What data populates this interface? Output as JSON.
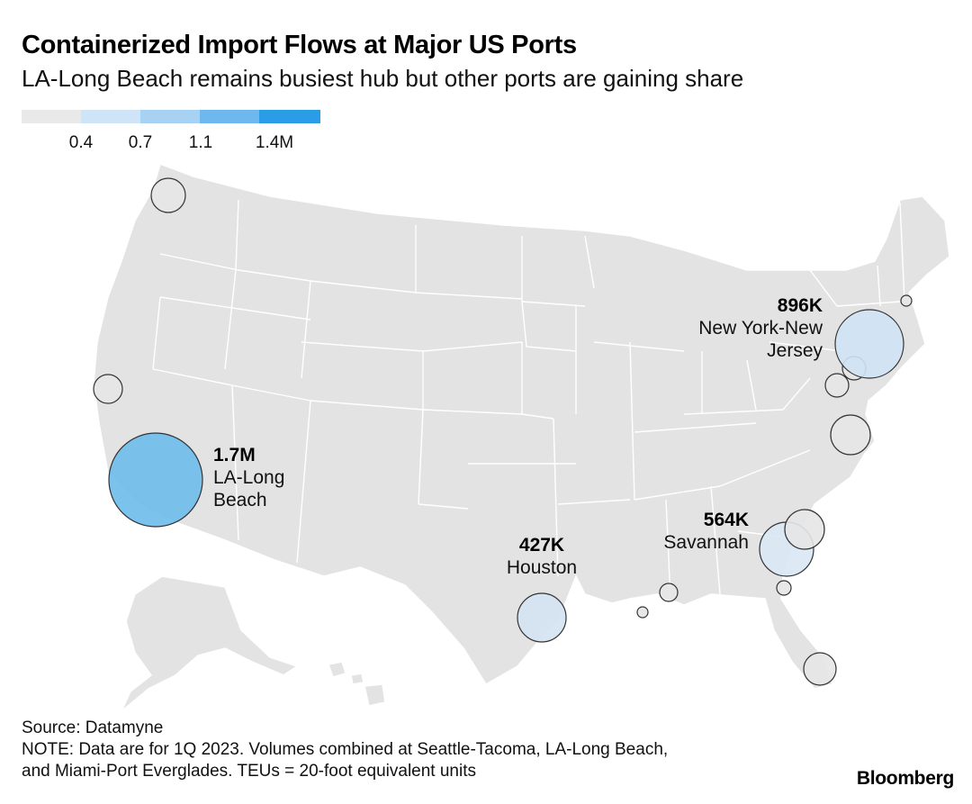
{
  "header": {
    "title": "Containerized Import Flows at Major US Ports",
    "subtitle": "LA-Long Beach remains busiest hub but other ports are gaining share"
  },
  "legend": {
    "ticks": [
      "0.4",
      "0.7",
      "1.1",
      "1.4M"
    ],
    "colors": [
      "#e9e9e9",
      "#cfe4f7",
      "#a8d2f4",
      "#6db8ee",
      "#2b9de6"
    ]
  },
  "map": {
    "land_color": "#e3e3e3",
    "border_color": "#ffffff",
    "bubble_stroke": "#333333"
  },
  "ports": [
    {
      "id": "seattle-tacoma",
      "color": "#e5e5e5"
    },
    {
      "id": "oakland",
      "color": "#e5e5e5"
    },
    {
      "id": "la-long-beach",
      "value": "1.7M",
      "name": "LA-Long Beach",
      "name_lines": [
        "LA-Long",
        "Beach"
      ],
      "color": "#6dbbea"
    },
    {
      "id": "houston",
      "value": "427K",
      "name": "Houston",
      "name_lines": [
        "Houston"
      ],
      "color": "#d3e3f1"
    },
    {
      "id": "new-orleans",
      "color": "#e5e5e5"
    },
    {
      "id": "mobile",
      "color": "#e5e5e5"
    },
    {
      "id": "savannah",
      "value": "564K",
      "name": "Savannah",
      "name_lines": [
        "Savannah"
      ],
      "color": "#d9e8f5"
    },
    {
      "id": "charleston",
      "color": "#e5e5e5"
    },
    {
      "id": "jacksonville",
      "color": "#e5e5e5"
    },
    {
      "id": "miami-port-everglades",
      "color": "#e5e5e5"
    },
    {
      "id": "virginia",
      "color": "#e5e5e5"
    },
    {
      "id": "baltimore",
      "color": "#e5e5e5"
    },
    {
      "id": "philadelphia",
      "color": "#e5e5e5"
    },
    {
      "id": "new-york-new-jersey",
      "value": "896K",
      "name": "New York-New Jersey",
      "name_lines": [
        "New York-New",
        "Jersey"
      ],
      "color": "#cfe3f5"
    },
    {
      "id": "boston",
      "color": "#e5e5e5"
    }
  ],
  "footer": {
    "source": "Source: Datamyne",
    "note_line1": "NOTE: Data are for 1Q 2023. Volumes combined at Seattle-Tacoma, LA-Long Beach,",
    "note_line2": "and Miami-Port Everglades. TEUs = 20-foot equivalent units",
    "brand": "Bloomberg"
  }
}
